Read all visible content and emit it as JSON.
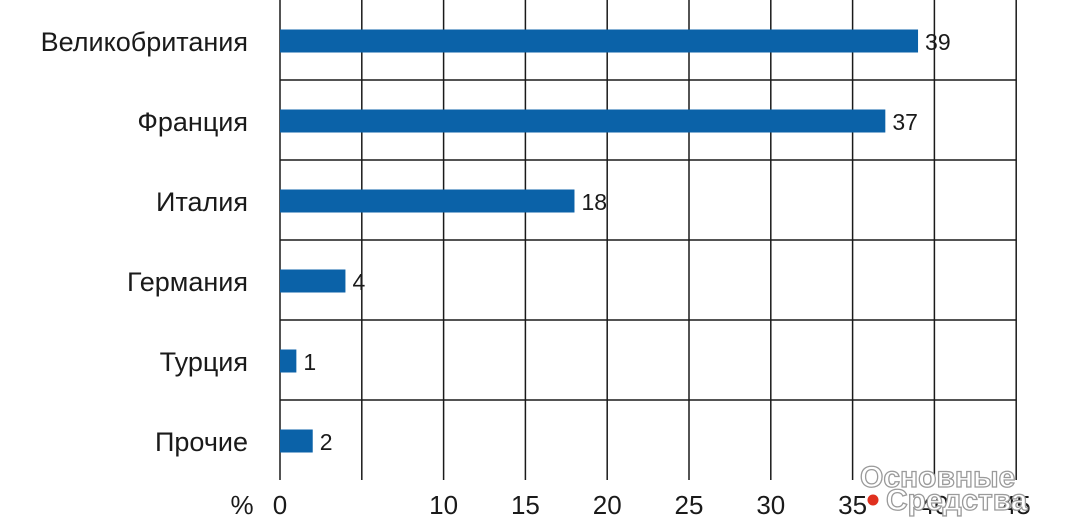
{
  "chart_data": {
    "type": "bar",
    "orientation": "horizontal",
    "categories": [
      "Великобритания",
      "Франция",
      "Италия",
      "Германия",
      "Турция",
      "Прочие"
    ],
    "values": [
      39,
      37,
      18,
      4,
      1,
      2
    ],
    "data_labels": [
      "39",
      "37",
      "18",
      "4",
      "1",
      "2"
    ],
    "x_unit": "%",
    "xlim": [
      0,
      40
    ],
    "x_ticks": [
      0,
      10,
      15,
      20,
      25,
      30,
      35,
      40,
      45
    ],
    "x_tick_labels": [
      "0",
      "10",
      "15",
      "20",
      "25",
      "30",
      "35",
      "40",
      "45"
    ],
    "grid": true,
    "bar_color": "#0b62a8"
  },
  "watermark": {
    "line1": "Основные",
    "line2": "Средства",
    "dot_color": "#e0301e"
  }
}
